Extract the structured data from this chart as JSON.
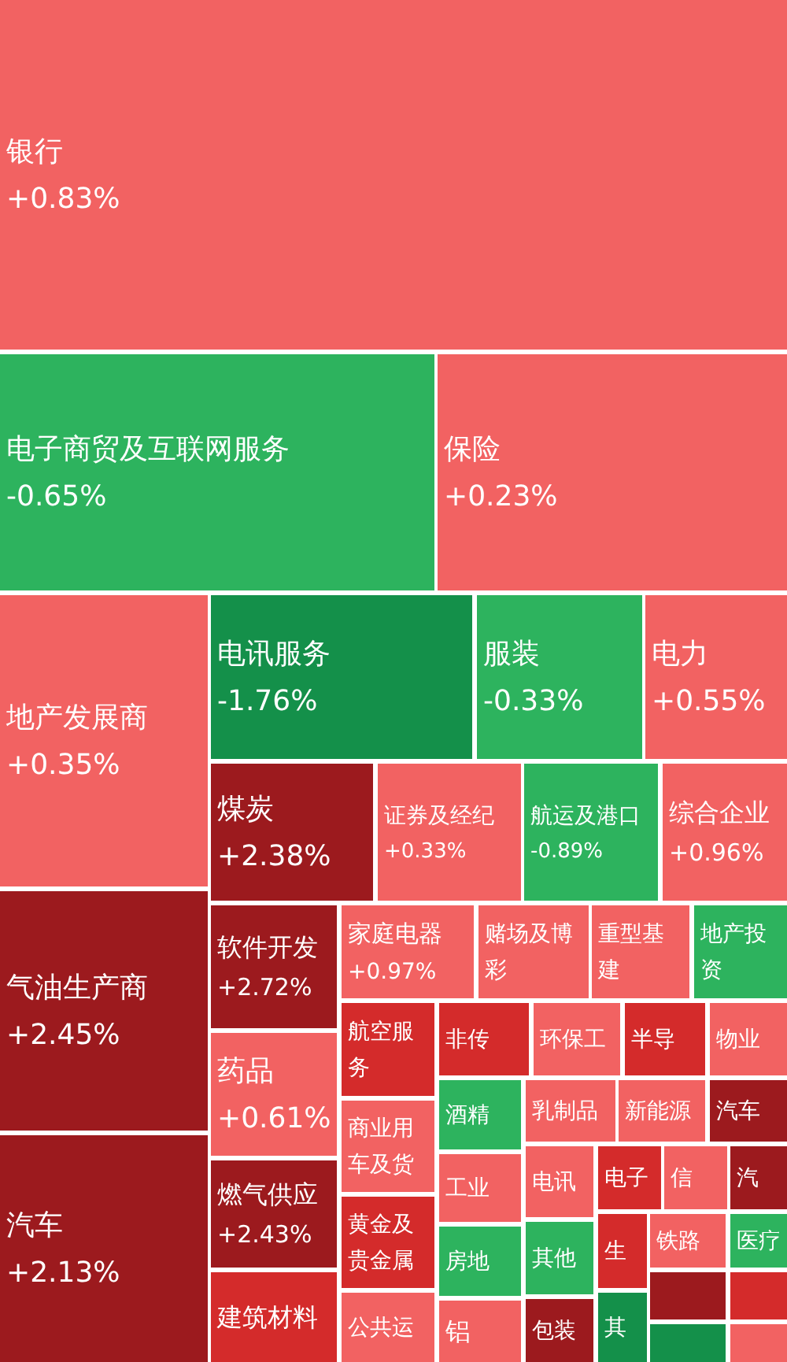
{
  "chart_data": {
    "type": "other",
    "categories": [
      "银行",
      "电子商贸及互联网服务",
      "保险",
      "地产发展商",
      "电讯服务",
      "服装",
      "电力",
      "煤炭",
      "证券及经纪",
      "航运及港口",
      "综合企业",
      "气油生产商",
      "汽车",
      "软件开发",
      "家庭电器",
      "赌场及博彩",
      "重型基建",
      "地产投资",
      "药品",
      "燃气供应",
      "建筑材料",
      "航空服务",
      "商业用车及货",
      "黄金及贵金属",
      "公共运",
      "非传",
      "环保工",
      "半导",
      "物业",
      "酒精",
      "乳制品",
      "新能源",
      "汽车",
      "工业",
      "电讯",
      "电子",
      "信",
      "汽",
      "房地",
      "其他",
      "生",
      "铁路",
      "医疗",
      "铝",
      "包装",
      "其",
      null,
      null,
      null,
      null
    ],
    "values": [
      0.83,
      -0.65,
      0.23,
      0.35,
      -1.76,
      -0.33,
      0.55,
      2.38,
      0.33,
      -0.89,
      0.96,
      2.45,
      2.13,
      2.72,
      0.97,
      null,
      null,
      null,
      0.61,
      2.43,
      null,
      null,
      null,
      null,
      null,
      null,
      null,
      null,
      null,
      null,
      null,
      null,
      null,
      null,
      null,
      null,
      null,
      null,
      null,
      null,
      null,
      null,
      null,
      null,
      null,
      null,
      null,
      null,
      null,
      null
    ],
    "value_labels": [
      "+0.83%",
      "-0.65%",
      "+0.23%",
      "+0.35%",
      "-1.76%",
      "-0.33%",
      "+0.55%",
      "+2.38%",
      "+0.33%",
      "-0.89%",
      "+0.96%",
      "+2.45%",
      "+2.13%",
      "+2.72%",
      "+0.97%",
      null,
      null,
      null,
      "+0.61%",
      "+2.43%",
      null,
      null,
      null,
      null,
      null,
      null,
      null,
      null,
      null,
      null,
      null,
      null,
      null,
      null,
      null,
      null,
      null,
      null,
      null,
      null,
      null,
      null,
      null,
      null,
      null,
      null,
      null,
      null,
      null,
      null
    ],
    "colors": [
      "#f26262",
      "#2db35e",
      "#f26262",
      "#f26262",
      "#14904a",
      "#2db35e",
      "#f26262",
      "#9c1a1e",
      "#f26262",
      "#2db35e",
      "#f26262",
      "#9c1a1e",
      "#9c1a1e",
      "#9c1a1e",
      "#f26262",
      "#f26262",
      "#f26262",
      "#2db35e",
      "#f26262",
      "#9c1a1e",
      "#d42b2b",
      "#d42b2b",
      "#f26262",
      "#d42b2b",
      "#f26262",
      "#d42b2b",
      "#f26262",
      "#d42b2b",
      "#f26262",
      "#2db35e",
      "#f26262",
      "#f26262",
      "#9c1a1e",
      "#f26262",
      "#f26262",
      "#d42b2b",
      "#f26262",
      "#9c1a1e",
      "#2db35e",
      "#2db35e",
      "#d42b2b",
      "#f26262",
      "#2db35e",
      "#f26262",
      "#9c1a1e",
      "#14904a",
      "#9c1a1e",
      "#d42b2b",
      "#14904a",
      "#f26262"
    ]
  }
}
